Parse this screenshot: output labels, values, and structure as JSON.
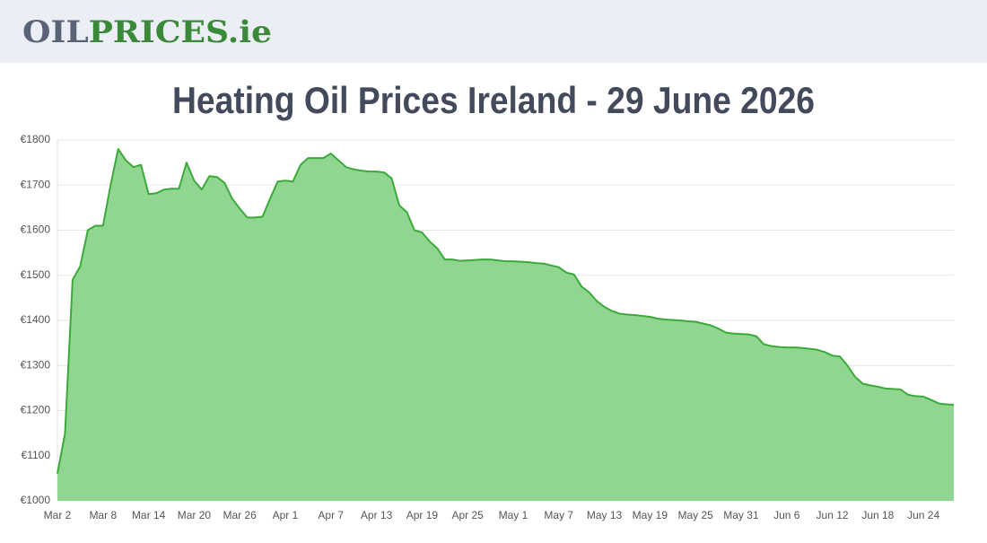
{
  "header": {
    "logo_left": "OIL",
    "logo_right": "PRICES.ie"
  },
  "chart_data": {
    "type": "area",
    "title": "Heating Oil Prices Ireland - 29 June 2026",
    "color": "#3aaa3a",
    "fill": "#90d690",
    "grid": true,
    "categories": [
      "Mar 2",
      null,
      null,
      null,
      null,
      null,
      "Mar 8",
      null,
      null,
      null,
      null,
      null,
      "Mar 14",
      null,
      null,
      null,
      null,
      null,
      "Mar 20",
      null,
      null,
      null,
      null,
      null,
      "Mar 26",
      null,
      null,
      null,
      null,
      null,
      "Apr 1",
      null,
      null,
      null,
      null,
      null,
      "Apr 7",
      null,
      null,
      null,
      null,
      null,
      "Apr 13",
      null,
      null,
      null,
      null,
      null,
      "Apr 19",
      null,
      null,
      null,
      null,
      null,
      "Apr 25",
      null,
      null,
      null,
      null,
      null,
      "May 1",
      null,
      null,
      null,
      null,
      null,
      "May 7",
      null,
      null,
      null,
      null,
      null,
      "May 13",
      null,
      null,
      null,
      null,
      null,
      "May 19",
      null,
      null,
      null,
      null,
      null,
      "May 25",
      null,
      null,
      null,
      null,
      null,
      "May 31",
      null,
      null,
      null,
      null,
      null,
      "Jun 6",
      null,
      null,
      null,
      null,
      null,
      "Jun 12",
      null,
      null,
      null,
      null,
      null,
      "Jun 18",
      null,
      null,
      null,
      null,
      null,
      "Jun 24",
      null,
      null,
      null,
      null
    ],
    "values": [
      1060,
      1150,
      1490,
      1520,
      1600,
      1610,
      1610,
      1700,
      1780,
      1755,
      1740,
      1745,
      1680,
      1682,
      1690,
      1692,
      1692,
      1750,
      1710,
      1690,
      1720,
      1718,
      1705,
      1670,
      1648,
      1628,
      1628,
      1630,
      1670,
      1708,
      1710,
      1708,
      1745,
      1760,
      1760,
      1760,
      1770,
      1755,
      1740,
      1735,
      1732,
      1730,
      1730,
      1728,
      1715,
      1655,
      1640,
      1600,
      1595,
      1575,
      1560,
      1535,
      1535,
      1532,
      1533,
      1534,
      1535,
      1535,
      1533,
      1531,
      1531,
      1530,
      1529,
      1527,
      1526,
      1522,
      1518,
      1506,
      1502,
      1475,
      1462,
      1443,
      1430,
      1421,
      1415,
      1413,
      1412,
      1410,
      1408,
      1404,
      1402,
      1401,
      1400,
      1398,
      1397,
      1393,
      1389,
      1382,
      1373,
      1371,
      1370,
      1369,
      1365,
      1347,
      1343,
      1341,
      1340,
      1340,
      1339,
      1337,
      1335,
      1330,
      1322,
      1320,
      1300,
      1275,
      1260,
      1256,
      1253,
      1249,
      1248,
      1247,
      1235,
      1232,
      1231,
      1224,
      1216,
      1214,
      1213
    ],
    "ylim": [
      1000,
      1800
    ],
    "yticks": [
      {
        "value": 1000,
        "label": "€1000"
      },
      {
        "value": 1100,
        "label": "€1100"
      },
      {
        "value": 1200,
        "label": "€1200"
      },
      {
        "value": 1300,
        "label": "€1300"
      },
      {
        "value": 1400,
        "label": "€1400"
      },
      {
        "value": 1500,
        "label": "€1500"
      },
      {
        "value": 1600,
        "label": "€1600"
      },
      {
        "value": 1700,
        "label": "€1700"
      },
      {
        "value": 1800,
        "label": "€1800"
      }
    ]
  }
}
